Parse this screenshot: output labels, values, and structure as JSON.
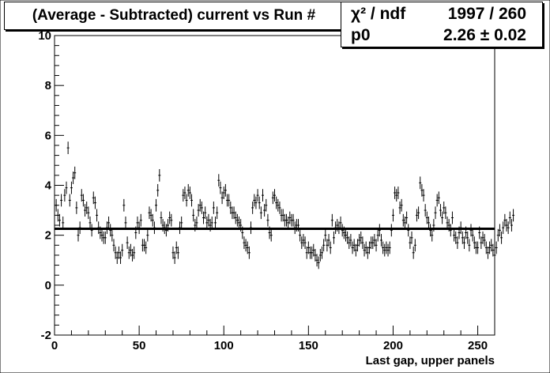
{
  "title": "(Average - Subtracted) current vs Run #",
  "stats": {
    "row1_key": "χ² / ndf",
    "row1_value": "1997 / 260",
    "row2_key": "p0",
    "row2_value": "2.26 ± 0.02"
  },
  "chart_data": {
    "type": "scatter",
    "title": "(Average - Subtracted) current vs Run #",
    "xlabel": "Last gap, upper panels",
    "ylabel": "",
    "xlim": [
      0,
      260
    ],
    "ylim": [
      -2,
      10
    ],
    "x_ticks": [
      "0",
      "50",
      "100",
      "150",
      "200",
      "250"
    ],
    "y_ticks": [
      "-2",
      "0",
      "2",
      "4",
      "6",
      "8",
      "10"
    ],
    "fit": {
      "function": "p0",
      "value": 2.26,
      "error": 0.02,
      "chi2": 1997,
      "ndf": 260
    },
    "series": [
      {
        "marker": "point with error bars",
        "x_start": 1,
        "error": 0.25,
        "values": [
          3.2,
          2.8,
          2.6,
          3.4,
          2.5,
          3.6,
          3.9,
          5.5,
          3.4,
          3.9,
          4.3,
          4.5,
          3.1,
          2.0,
          2.3,
          3.6,
          3.4,
          3.0,
          3.1,
          2.9,
          2.5,
          2.2,
          3.5,
          3.3,
          2.8,
          2.3,
          2.1,
          2.0,
          1.9,
          1.9,
          2.3,
          2.5,
          2.2,
          2.0,
          1.6,
          1.3,
          1.1,
          1.3,
          1.1,
          1.4,
          3.2,
          2.5,
          1.7,
          1.3,
          1.4,
          1.2,
          1.3,
          2.1,
          2.5,
          2.3,
          2.6,
          1.6,
          1.6,
          1.5,
          2.0,
          2.9,
          2.8,
          2.6,
          2.3,
          3.2,
          3.8,
          4.4,
          2.7,
          2.4,
          2.3,
          2.2,
          2.4,
          2.7,
          2.6,
          1.3,
          1.1,
          1.5,
          1.3,
          2.3,
          2.5,
          3.6,
          3.7,
          3.4,
          3.8,
          3.7,
          3.4,
          2.8,
          2.4,
          2.5,
          3.0,
          3.2,
          3.1,
          2.7,
          2.9,
          2.5,
          2.6,
          2.4,
          2.5,
          3.1,
          2.5,
          2.9,
          4.2,
          3.9,
          3.5,
          3.7,
          3.8,
          3.4,
          3.4,
          3.1,
          2.9,
          2.9,
          2.7,
          2.6,
          2.5,
          2.4,
          2.1,
          1.7,
          1.6,
          1.5,
          1.3,
          2.3,
          3.1,
          3.4,
          3.3,
          3.6,
          3.3,
          2.9,
          3.6,
          3.0,
          3.2,
          2.6,
          2.1,
          2.0,
          3.5,
          3.6,
          3.3,
          3.2,
          3.1,
          2.8,
          2.8,
          2.6,
          2.6,
          2.5,
          2.7,
          2.6,
          2.6,
          2.3,
          2.4,
          2.4,
          2.0,
          1.7,
          1.8,
          1.7,
          1.3,
          1.5,
          1.3,
          1.3,
          1.4,
          1.2,
          1.0,
          0.9,
          1.2,
          1.3,
          1.6,
          2.0,
          1.6,
          1.8,
          1.5,
          2.6,
          1.9,
          2.3,
          2.4,
          2.3,
          2.5,
          2.2,
          2.1,
          2.0,
          1.9,
          1.7,
          1.8,
          1.5,
          1.6,
          1.4,
          1.6,
          1.8,
          1.9,
          1.7,
          1.4,
          1.5,
          1.3,
          1.5,
          1.7,
          1.7,
          1.8,
          1.6,
          2.0,
          2.2,
          1.8,
          1.5,
          1.4,
          1.5,
          1.4,
          1.5,
          2.2,
          2.8,
          3.7,
          3.6,
          3.7,
          3.1,
          3.2,
          2.6,
          2.5,
          2.7,
          2.2,
          1.7,
          1.9,
          1.3,
          1.6,
          2.8,
          2.9,
          4.1,
          3.8,
          3.6,
          3.0,
          2.7,
          2.5,
          2.2,
          2.0,
          2.4,
          2.9,
          3.4,
          3.5,
          3.0,
          2.7,
          3.1,
          2.9,
          2.5,
          2.4,
          2.2,
          2.7,
          2.0,
          1.9,
          1.7,
          2.1,
          2.3,
          1.9,
          1.7,
          2.1,
          1.9,
          1.6,
          2.2,
          2.0,
          1.7,
          1.5,
          1.5,
          2.1,
          1.7,
          1.9,
          1.8,
          1.5,
          1.3,
          1.5,
          1.6,
          1.4,
          1.2,
          1.5,
          2.0,
          2.2,
          1.9,
          2.3,
          2.6,
          2.4,
          2.3,
          2.7,
          2.4,
          2.8
        ]
      }
    ]
  }
}
